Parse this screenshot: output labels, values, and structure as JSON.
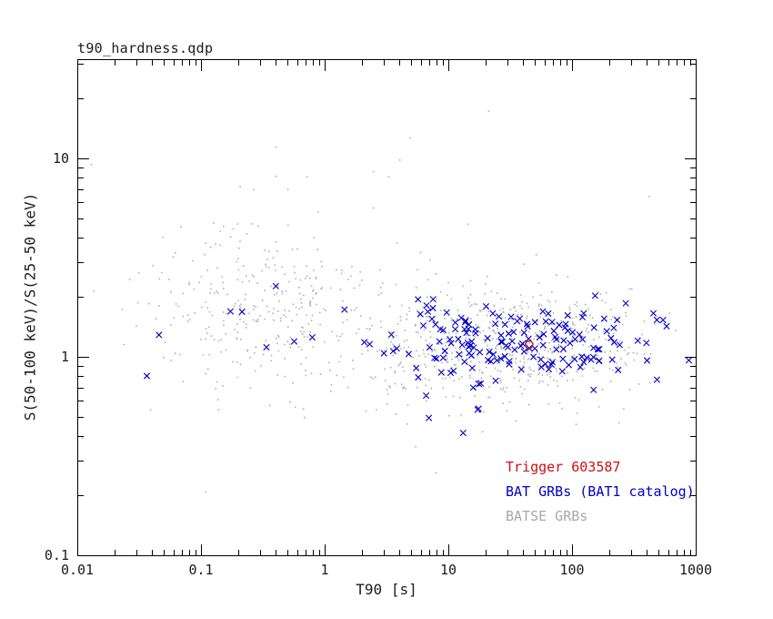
{
  "chart_data": {
    "type": "scatter",
    "title": "t90_hardness.qdp",
    "xlabel": "T90 [s]",
    "ylabel": "S(50-100 keV)/S(25-50 keV)",
    "x_scale": "log",
    "y_scale": "log",
    "xlim": [
      0.01,
      1000
    ],
    "ylim": [
      0.1,
      31.6
    ],
    "grid": false,
    "x_ticks": [
      {
        "v": 0.01,
        "label": "0.01"
      },
      {
        "v": 0.1,
        "label": "0.1"
      },
      {
        "v": 1,
        "label": "1"
      },
      {
        "v": 10,
        "label": "10"
      },
      {
        "v": 100,
        "label": "100"
      },
      {
        "v": 1000,
        "label": "1000"
      }
    ],
    "y_ticks": [
      {
        "v": 0.1,
        "label": "0.1"
      },
      {
        "v": 1,
        "label": "1"
      },
      {
        "v": 10,
        "label": "10"
      }
    ],
    "legend": [
      {
        "label": "Trigger 603587",
        "color": "#cc1111",
        "series": "trigger"
      },
      {
        "label": "BAT GRBs (BAT1 catalog)",
        "color": "#0000c8",
        "series": "bat"
      },
      {
        "label": "BATSE GRBs",
        "color": "#a8a8a8",
        "series": "batse"
      }
    ],
    "legend_position": "inside-lower-right",
    "series": [
      {
        "name": "BATSE GRBs",
        "marker": "dot",
        "color": "#b0b0b0",
        "clusters": [
          {
            "seed": 101,
            "count": 600,
            "t_mean": 1.5,
            "t_sigma": 0.55,
            "hr_mean": 0.06,
            "hr_sigma": 0.15
          },
          {
            "seed": 202,
            "count": 310,
            "t_mean": -0.5,
            "t_sigma": 0.5,
            "hr_mean": 0.27,
            "hr_sigma": 0.19
          },
          {
            "seed": 303,
            "count": 70,
            "t_mean": 0.6,
            "t_sigma": 1.1,
            "hr_mean": 0.2,
            "hr_sigma": 0.45
          }
        ]
      },
      {
        "name": "BAT GRBs (BAT1 catalog)",
        "marker": "x",
        "color": "#0000c8",
        "clusters": [
          {
            "seed": 11,
            "count": 168,
            "t_mean": 1.55,
            "t_sigma": 0.52,
            "hr_mean": 0.075,
            "hr_sigma": 0.095
          },
          {
            "seed": 22,
            "count": 9,
            "t_mean": -0.7,
            "t_sigma": 0.4,
            "hr_mean": 0.16,
            "hr_sigma": 0.14
          },
          {
            "seed": 33,
            "count": 6,
            "t_mean": 0.8,
            "t_sigma": 0.6,
            "hr_mean": -0.22,
            "hr_sigma": 0.12
          }
        ]
      },
      {
        "name": "Trigger 603587",
        "marker": "circle",
        "color": "#cc1111",
        "points": [
          [
            45,
            1.15
          ]
        ]
      }
    ]
  }
}
